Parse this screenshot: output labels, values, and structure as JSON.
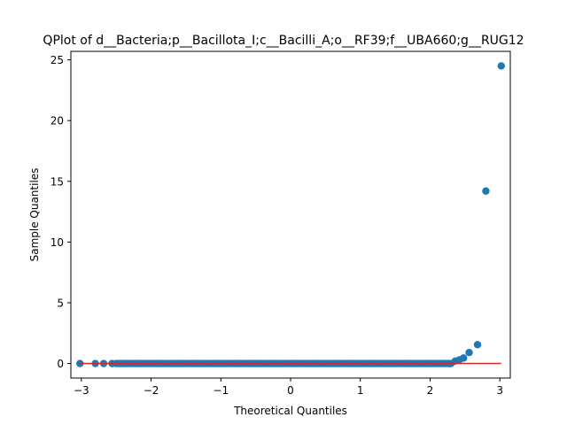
{
  "chart_data": {
    "type": "scatter",
    "title": "QPlot of d__Bacteria;p__Bacillota_I;c__Bacilli_A;o__RF39;f__UBA660;g__RUG12",
    "xlabel": "Theoretical Quantiles",
    "ylabel": "Sample Quantiles",
    "xlim": [
      -3.15,
      3.15
    ],
    "ylim": [
      -1.2,
      25.7
    ],
    "xticks": [
      -3,
      -2,
      -1,
      0,
      1,
      2,
      3
    ],
    "yticks": [
      0,
      5,
      10,
      15,
      20,
      25
    ],
    "grid": false,
    "legend": "none",
    "colors": {
      "points": "#1f77b4",
      "reference_line": "#d62728"
    },
    "reference_line": {
      "x": [
        -3.02,
        3.02
      ],
      "y": [
        0,
        0
      ]
    },
    "tail_points": {
      "x": [
        -3.02,
        -2.8,
        -2.68,
        -2.56,
        2.36,
        2.42,
        2.48,
        2.56,
        2.68,
        2.8,
        3.02
      ],
      "y": [
        0,
        0,
        0,
        0,
        0.2,
        0.3,
        0.45,
        0.9,
        1.55,
        14.2,
        24.5
      ]
    },
    "bulk_range": {
      "x_from": -2.5,
      "x_to": 2.3,
      "y": 0
    }
  }
}
